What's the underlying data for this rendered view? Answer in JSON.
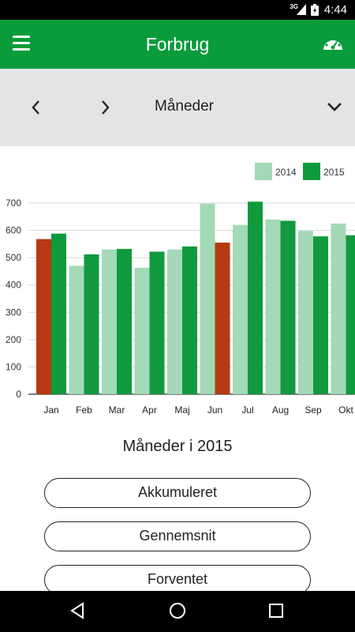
{
  "status": {
    "network": "3G",
    "time": "4:44"
  },
  "appbar": {
    "title": "Forbrug",
    "menu_icon": "hamburger-menu-icon",
    "gauge_icon": "speedometer-icon"
  },
  "period": {
    "label": "Måneder",
    "prev_icon": "chevron-left-icon",
    "next_icon": "chevron-right-icon",
    "dropdown_icon": "chevron-down-icon"
  },
  "colors": {
    "brand": "#0a9c3a",
    "series_2014": "#a3d9b7",
    "series_2015": "#119a3d",
    "highlight": "#b53a12",
    "period_bg": "#e2e4e6"
  },
  "chart_data": {
    "type": "bar",
    "categories": [
      "Jan",
      "Feb",
      "Mar",
      "Apr",
      "Maj",
      "Jun",
      "Jul",
      "Aug",
      "Sep",
      "Okt"
    ],
    "series": [
      {
        "name": "2014",
        "values": [
          null,
          470,
          530,
          463,
          530,
          698,
          620,
          640,
          598,
          625
        ]
      },
      {
        "name": "2015",
        "values": [
          588,
          512,
          532,
          522,
          541,
          null,
          705,
          635,
          578,
          582
        ]
      }
    ],
    "highlighted": [
      {
        "category": "Jan",
        "value": 568
      },
      {
        "category": "Jun",
        "value": 555
      }
    ],
    "ylim": [
      0,
      700
    ],
    "yticks": [
      0,
      100,
      200,
      300,
      400,
      500,
      600,
      700
    ],
    "grid": true,
    "legend": "top-right"
  },
  "subtitle": "Måneder i 2015",
  "buttons": [
    {
      "label": "Akkumuleret"
    },
    {
      "label": "Gennemsnit"
    },
    {
      "label": "Forventet"
    }
  ],
  "navbar": {
    "back_icon": "back-triangle-icon",
    "home_icon": "home-circle-icon",
    "recents_icon": "recents-square-icon"
  }
}
